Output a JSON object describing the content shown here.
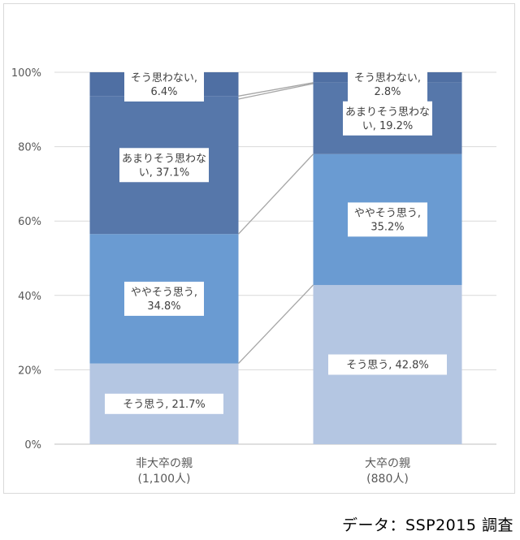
{
  "chart_data": {
    "type": "bar",
    "stacked": true,
    "normalized": true,
    "categories": [
      [
        "非大卒の親",
        "(1,100人)"
      ],
      [
        "大卒の親",
        "(880人)"
      ]
    ],
    "series": [
      {
        "name": "そう思う",
        "values": [
          21.7,
          42.8
        ],
        "color": "#b4c6e2",
        "labels": [
          [
            "そう思う, 21.7%"
          ],
          [
            "そう思う, 42.8%"
          ]
        ]
      },
      {
        "name": "ややそう思う",
        "values": [
          34.8,
          35.2
        ],
        "color": "#6a9bd2",
        "labels": [
          [
            "ややそう思う,",
            "34.8%"
          ],
          [
            "ややそう思う,",
            "35.2%"
          ]
        ]
      },
      {
        "name": "あまりそう思わない",
        "values": [
          37.1,
          19.2
        ],
        "color": "#5677aa",
        "labels": [
          [
            "あまりそう思わな",
            "い, 37.1%"
          ],
          [
            "あまりそう思わな",
            "い, 19.2%"
          ]
        ]
      },
      {
        "name": "そう思わない",
        "values": [
          6.4,
          2.8
        ],
        "color": "#4f6fa3",
        "labels": [
          [
            "そう思わない,",
            "6.4%"
          ],
          [
            "そう思わない,",
            "2.8%"
          ]
        ]
      }
    ],
    "y_ticks": [
      "0%",
      "20%",
      "40%",
      "60%",
      "80%",
      "100%"
    ],
    "ylim": [
      0,
      100
    ],
    "series_lines": true,
    "grid": true,
    "legend": "none"
  },
  "source_note": "データ：SSP2015 調査"
}
